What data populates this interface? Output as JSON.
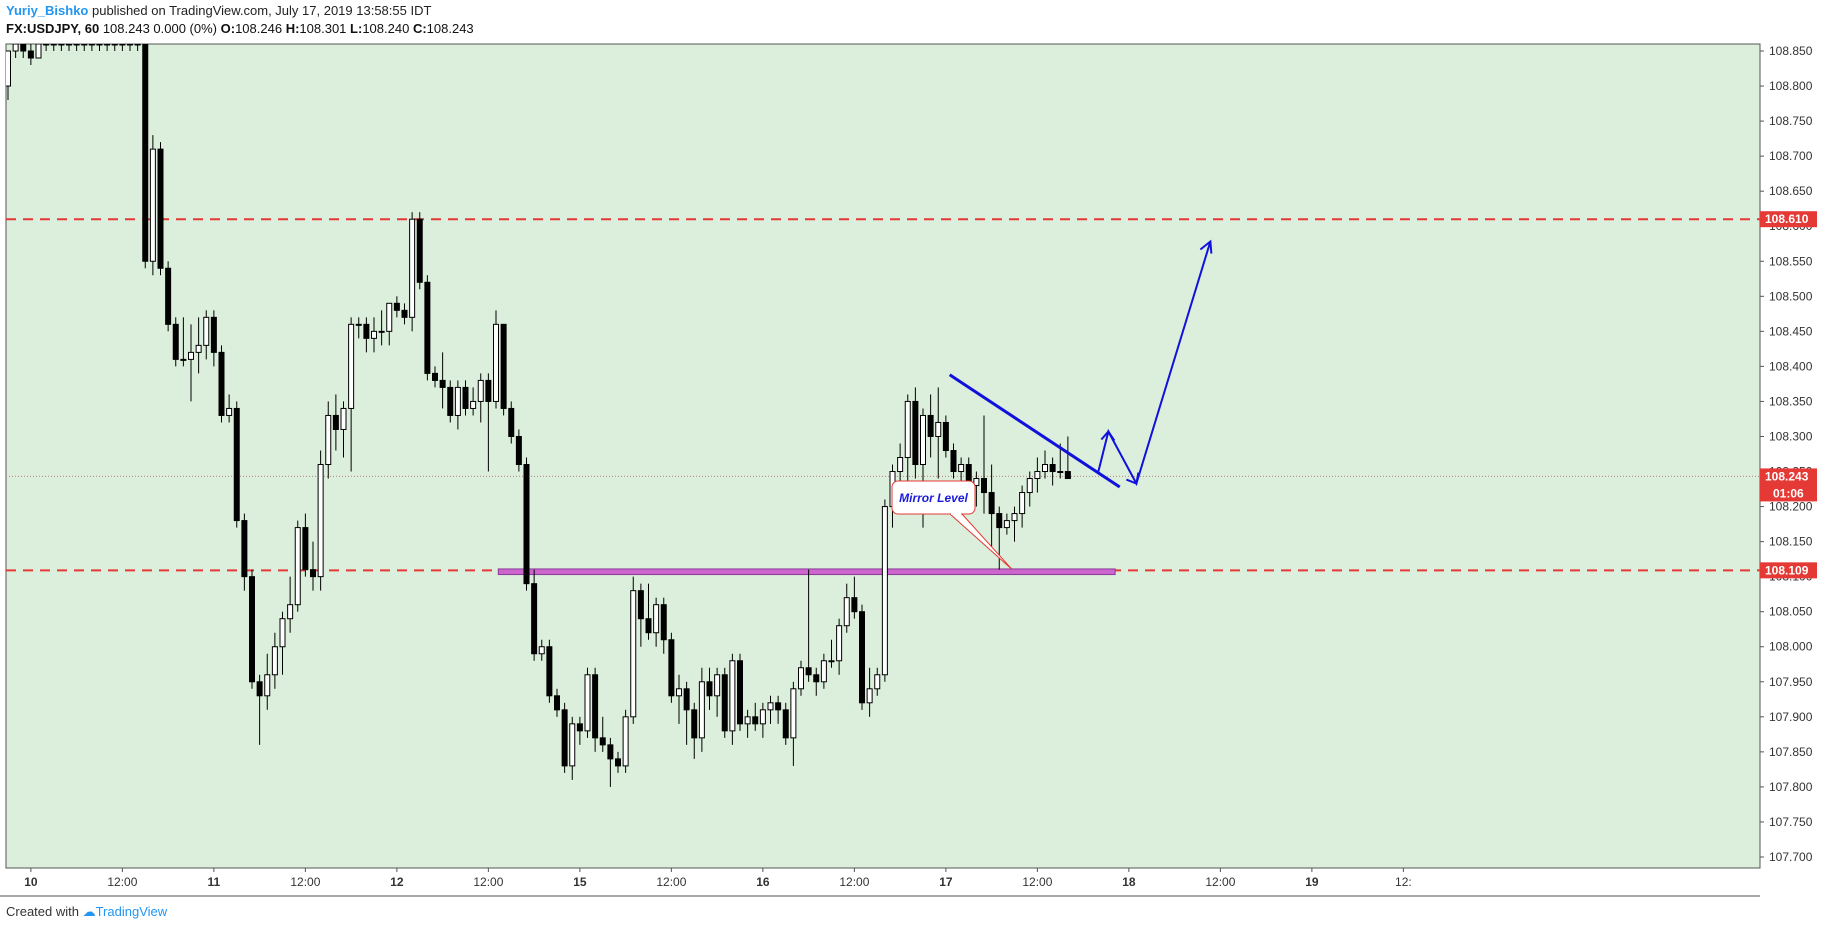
{
  "header": {
    "author": "Yuriy_Bishko",
    "published": " published on TradingView.com, July 17, 2019 13:58:55 IDT",
    "symbol": "FX:USDJPY, 60",
    "change": " 108.243 0.000 (0%) ",
    "o_label": "O:",
    "o_value": "108.246",
    "h_label": "H:",
    "h_value": "108.301",
    "l_label": "L:",
    "l_value": "108.240",
    "c_label": "C:",
    "c_value": "108.243"
  },
  "footer": {
    "created_with": "Created with ",
    "brand": "TradingView"
  },
  "colors": {
    "background": "#dcefdc",
    "up": "#ffffff",
    "down": "#000000",
    "level": "#e53935",
    "trend": "#1111dd",
    "zone": "#cc66cc"
  },
  "chart_data": {
    "type": "candlestick",
    "ylim": [
      107.72,
      108.862
    ],
    "y_ticks": [
      "108.850",
      "108.800",
      "108.750",
      "108.700",
      "108.650",
      "108.600",
      "108.550",
      "108.500",
      "108.450",
      "108.400",
      "108.350",
      "108.300",
      "108.250",
      "108.200",
      "108.150",
      "108.100",
      "108.050",
      "108.000",
      "107.950",
      "107.900",
      "107.850",
      "107.800",
      "107.750",
      "107.700"
    ],
    "x_ticks": [
      {
        "label": "10",
        "bar": 3,
        "bold": true
      },
      {
        "label": "12:00",
        "bar": 15,
        "bold": false
      },
      {
        "label": "11",
        "bar": 27,
        "bold": true
      },
      {
        "label": "12:00",
        "bar": 39,
        "bold": false
      },
      {
        "label": "12",
        "bar": 51,
        "bold": true
      },
      {
        "label": "12:00",
        "bar": 63,
        "bold": false
      },
      {
        "label": "15",
        "bar": 75,
        "bold": true
      },
      {
        "label": "12:00",
        "bar": 87,
        "bold": false
      },
      {
        "label": "16",
        "bar": 99,
        "bold": true
      },
      {
        "label": "12:00",
        "bar": 111,
        "bold": false
      },
      {
        "label": "17",
        "bar": 123,
        "bold": true
      },
      {
        "label": "12:00",
        "bar": 135,
        "bold": false
      },
      {
        "label": "18",
        "bar": 147,
        "bold": true
      },
      {
        "label": "12:00",
        "bar": 159,
        "bold": false
      },
      {
        "label": "19",
        "bar": 171,
        "bold": true
      },
      {
        "label": "12:",
        "bar": 183,
        "bold": false
      }
    ],
    "bars": [
      [
        108.8,
        108.85,
        108.78,
        108.85
      ],
      [
        108.85,
        108.87,
        108.84,
        108.86
      ],
      [
        108.86,
        108.87,
        108.84,
        108.85
      ],
      [
        108.85,
        108.86,
        108.83,
        108.84
      ],
      [
        108.84,
        108.87,
        108.84,
        108.86
      ],
      [
        108.86,
        108.87,
        108.85,
        108.86
      ],
      [
        108.86,
        108.87,
        108.85,
        108.86
      ],
      [
        108.86,
        108.87,
        108.85,
        108.86
      ],
      [
        108.86,
        108.87,
        108.85,
        108.86
      ],
      [
        108.86,
        108.87,
        108.85,
        108.86
      ],
      [
        108.86,
        108.87,
        108.85,
        108.86
      ],
      [
        108.86,
        108.87,
        108.85,
        108.86
      ],
      [
        108.86,
        108.87,
        108.85,
        108.86
      ],
      [
        108.86,
        108.87,
        108.85,
        108.86
      ],
      [
        108.86,
        108.87,
        108.85,
        108.86
      ],
      [
        108.86,
        108.87,
        108.85,
        108.86
      ],
      [
        108.86,
        108.87,
        108.85,
        108.86
      ],
      [
        108.86,
        108.87,
        108.85,
        108.86
      ],
      [
        108.86,
        108.87,
        108.54,
        108.55
      ],
      [
        108.55,
        108.73,
        108.53,
        108.71
      ],
      [
        108.71,
        108.72,
        108.53,
        108.54
      ],
      [
        108.54,
        108.55,
        108.45,
        108.46
      ],
      [
        108.46,
        108.47,
        108.4,
        108.41
      ],
      [
        108.41,
        108.47,
        108.4,
        108.41
      ],
      [
        108.41,
        108.46,
        108.35,
        108.42
      ],
      [
        108.42,
        108.47,
        108.39,
        108.43
      ],
      [
        108.43,
        108.48,
        108.41,
        108.47
      ],
      [
        108.47,
        108.48,
        108.4,
        108.42
      ],
      [
        108.42,
        108.43,
        108.32,
        108.33
      ],
      [
        108.33,
        108.36,
        108.32,
        108.34
      ],
      [
        108.34,
        108.35,
        108.17,
        108.18
      ],
      [
        108.18,
        108.19,
        108.08,
        108.1
      ],
      [
        108.1,
        108.11,
        107.94,
        107.95
      ],
      [
        107.95,
        107.96,
        107.86,
        107.93
      ],
      [
        107.93,
        107.99,
        107.91,
        107.96
      ],
      [
        107.96,
        108.02,
        107.94,
        108.0
      ],
      [
        108.0,
        108.05,
        107.96,
        108.04
      ],
      [
        108.04,
        108.1,
        108.02,
        108.06
      ],
      [
        108.06,
        108.18,
        108.05,
        108.17
      ],
      [
        108.17,
        108.19,
        108.1,
        108.11
      ],
      [
        108.11,
        108.15,
        108.08,
        108.1
      ],
      [
        108.1,
        108.28,
        108.08,
        108.26
      ],
      [
        108.26,
        108.35,
        108.24,
        108.33
      ],
      [
        108.33,
        108.36,
        108.28,
        108.31
      ],
      [
        108.31,
        108.35,
        108.27,
        108.34
      ],
      [
        108.34,
        108.47,
        108.25,
        108.46
      ],
      [
        108.46,
        108.47,
        108.44,
        108.46
      ],
      [
        108.46,
        108.47,
        108.42,
        108.44
      ],
      [
        108.44,
        108.47,
        108.42,
        108.45
      ],
      [
        108.45,
        108.48,
        108.43,
        108.45
      ],
      [
        108.45,
        108.49,
        108.43,
        108.49
      ],
      [
        108.49,
        108.5,
        108.47,
        108.48
      ],
      [
        108.48,
        108.49,
        108.46,
        108.47
      ],
      [
        108.47,
        108.62,
        108.45,
        108.61
      ],
      [
        108.61,
        108.62,
        108.51,
        108.52
      ],
      [
        108.52,
        108.53,
        108.38,
        108.39
      ],
      [
        108.39,
        108.4,
        108.37,
        108.38
      ],
      [
        108.38,
        108.42,
        108.34,
        108.37
      ],
      [
        108.37,
        108.38,
        108.32,
        108.33
      ],
      [
        108.33,
        108.38,
        108.31,
        108.37
      ],
      [
        108.37,
        108.38,
        108.33,
        108.34
      ],
      [
        108.34,
        108.37,
        108.33,
        108.35
      ],
      [
        108.35,
        108.39,
        108.32,
        108.38
      ],
      [
        108.38,
        108.39,
        108.25,
        108.35
      ],
      [
        108.35,
        108.48,
        108.34,
        108.46
      ],
      [
        108.46,
        108.46,
        108.33,
        108.34
      ],
      [
        108.34,
        108.35,
        108.29,
        108.3
      ],
      [
        108.3,
        108.31,
        108.25,
        108.26
      ],
      [
        108.26,
        108.27,
        108.08,
        108.09
      ],
      [
        108.09,
        108.11,
        107.98,
        107.99
      ],
      [
        107.99,
        108.01,
        107.98,
        108.0
      ],
      [
        108.0,
        108.01,
        107.92,
        107.93
      ],
      [
        107.93,
        107.94,
        107.9,
        107.91
      ],
      [
        107.91,
        107.92,
        107.82,
        107.83
      ],
      [
        107.83,
        107.9,
        107.81,
        107.89
      ],
      [
        107.89,
        107.9,
        107.86,
        107.88
      ],
      [
        107.88,
        107.97,
        107.87,
        107.96
      ],
      [
        107.96,
        107.97,
        107.85,
        107.87
      ],
      [
        107.87,
        107.9,
        107.85,
        107.86
      ],
      [
        107.86,
        107.87,
        107.8,
        107.84
      ],
      [
        107.84,
        107.85,
        107.82,
        107.83
      ],
      [
        107.83,
        107.91,
        107.82,
        107.9
      ],
      [
        107.9,
        108.1,
        107.89,
        108.08
      ],
      [
        108.08,
        108.09,
        108.0,
        108.04
      ],
      [
        108.04,
        108.09,
        108.01,
        108.02
      ],
      [
        108.02,
        108.07,
        108.0,
        108.06
      ],
      [
        108.06,
        108.07,
        107.99,
        108.01
      ],
      [
        108.01,
        108.02,
        107.92,
        107.93
      ],
      [
        107.93,
        107.96,
        107.89,
        107.94
      ],
      [
        107.94,
        107.95,
        107.86,
        107.91
      ],
      [
        107.91,
        107.92,
        107.84,
        107.87
      ],
      [
        107.87,
        107.97,
        107.85,
        107.95
      ],
      [
        107.95,
        107.97,
        107.91,
        107.93
      ],
      [
        107.93,
        107.97,
        107.9,
        107.96
      ],
      [
        107.96,
        107.97,
        107.87,
        107.88
      ],
      [
        107.88,
        107.99,
        107.86,
        107.98
      ],
      [
        107.98,
        107.99,
        107.88,
        107.89
      ],
      [
        107.89,
        107.91,
        107.87,
        107.9
      ],
      [
        107.9,
        107.92,
        107.88,
        107.89
      ],
      [
        107.89,
        107.92,
        107.87,
        107.91
      ],
      [
        107.91,
        107.93,
        107.89,
        107.92
      ],
      [
        107.92,
        107.93,
        107.89,
        107.91
      ],
      [
        107.91,
        107.92,
        107.86,
        107.87
      ],
      [
        107.87,
        107.95,
        107.83,
        107.94
      ],
      [
        107.94,
        107.98,
        107.93,
        107.97
      ],
      [
        107.97,
        108.11,
        107.95,
        107.96
      ],
      [
        107.96,
        107.97,
        107.93,
        107.95
      ],
      [
        107.95,
        107.99,
        107.94,
        107.98
      ],
      [
        107.98,
        108.01,
        107.97,
        107.98
      ],
      [
        107.98,
        108.04,
        107.96,
        108.03
      ],
      [
        108.03,
        108.09,
        108.02,
        108.07
      ],
      [
        108.07,
        108.1,
        108.04,
        108.05
      ],
      [
        108.05,
        108.06,
        107.91,
        107.92
      ],
      [
        107.92,
        107.97,
        107.9,
        107.94
      ],
      [
        107.94,
        107.97,
        107.93,
        107.96
      ],
      [
        107.96,
        108.21,
        107.95,
        108.2
      ],
      [
        108.2,
        108.26,
        108.17,
        108.25
      ],
      [
        108.25,
        108.29,
        108.22,
        108.27
      ],
      [
        108.27,
        108.36,
        108.2,
        108.35
      ],
      [
        108.35,
        108.37,
        108.24,
        108.26
      ],
      [
        108.26,
        108.34,
        108.17,
        108.33
      ],
      [
        108.33,
        108.36,
        108.27,
        108.3
      ],
      [
        108.3,
        108.37,
        108.24,
        108.32
      ],
      [
        108.32,
        108.33,
        108.27,
        108.28
      ],
      [
        108.28,
        108.29,
        108.24,
        108.25
      ],
      [
        108.25,
        108.27,
        108.22,
        108.26
      ],
      [
        108.26,
        108.27,
        108.2,
        108.23
      ],
      [
        108.23,
        108.25,
        108.2,
        108.24
      ],
      [
        108.24,
        108.33,
        108.19,
        108.22
      ],
      [
        108.22,
        108.26,
        108.14,
        108.19
      ],
      [
        108.19,
        108.2,
        108.11,
        108.17
      ],
      [
        108.17,
        108.19,
        108.16,
        108.18
      ],
      [
        108.18,
        108.2,
        108.15,
        108.19
      ],
      [
        108.19,
        108.23,
        108.17,
        108.22
      ],
      [
        108.22,
        108.25,
        108.2,
        108.24
      ],
      [
        108.24,
        108.27,
        108.22,
        108.25
      ],
      [
        108.25,
        108.28,
        108.24,
        108.26
      ],
      [
        108.26,
        108.27,
        108.23,
        108.25
      ],
      [
        108.25,
        108.29,
        108.24,
        108.25
      ],
      [
        108.25,
        108.3,
        108.24,
        108.24
      ]
    ],
    "levels": [
      {
        "value": 108.61,
        "label": "108.610"
      },
      {
        "value": 108.109,
        "label": "108.109"
      }
    ],
    "last_price": {
      "value": 108.243,
      "label": "108.243",
      "countdown": "01:06"
    },
    "annotation": "Mirror Level",
    "trendline": [
      [
        123.5,
        108.388
      ],
      [
        145.8,
        108.228
      ]
    ],
    "zone": {
      "bar_from": 64.3,
      "bar_to": 145.2,
      "low": 108.103,
      "high": 108.111
    }
  }
}
